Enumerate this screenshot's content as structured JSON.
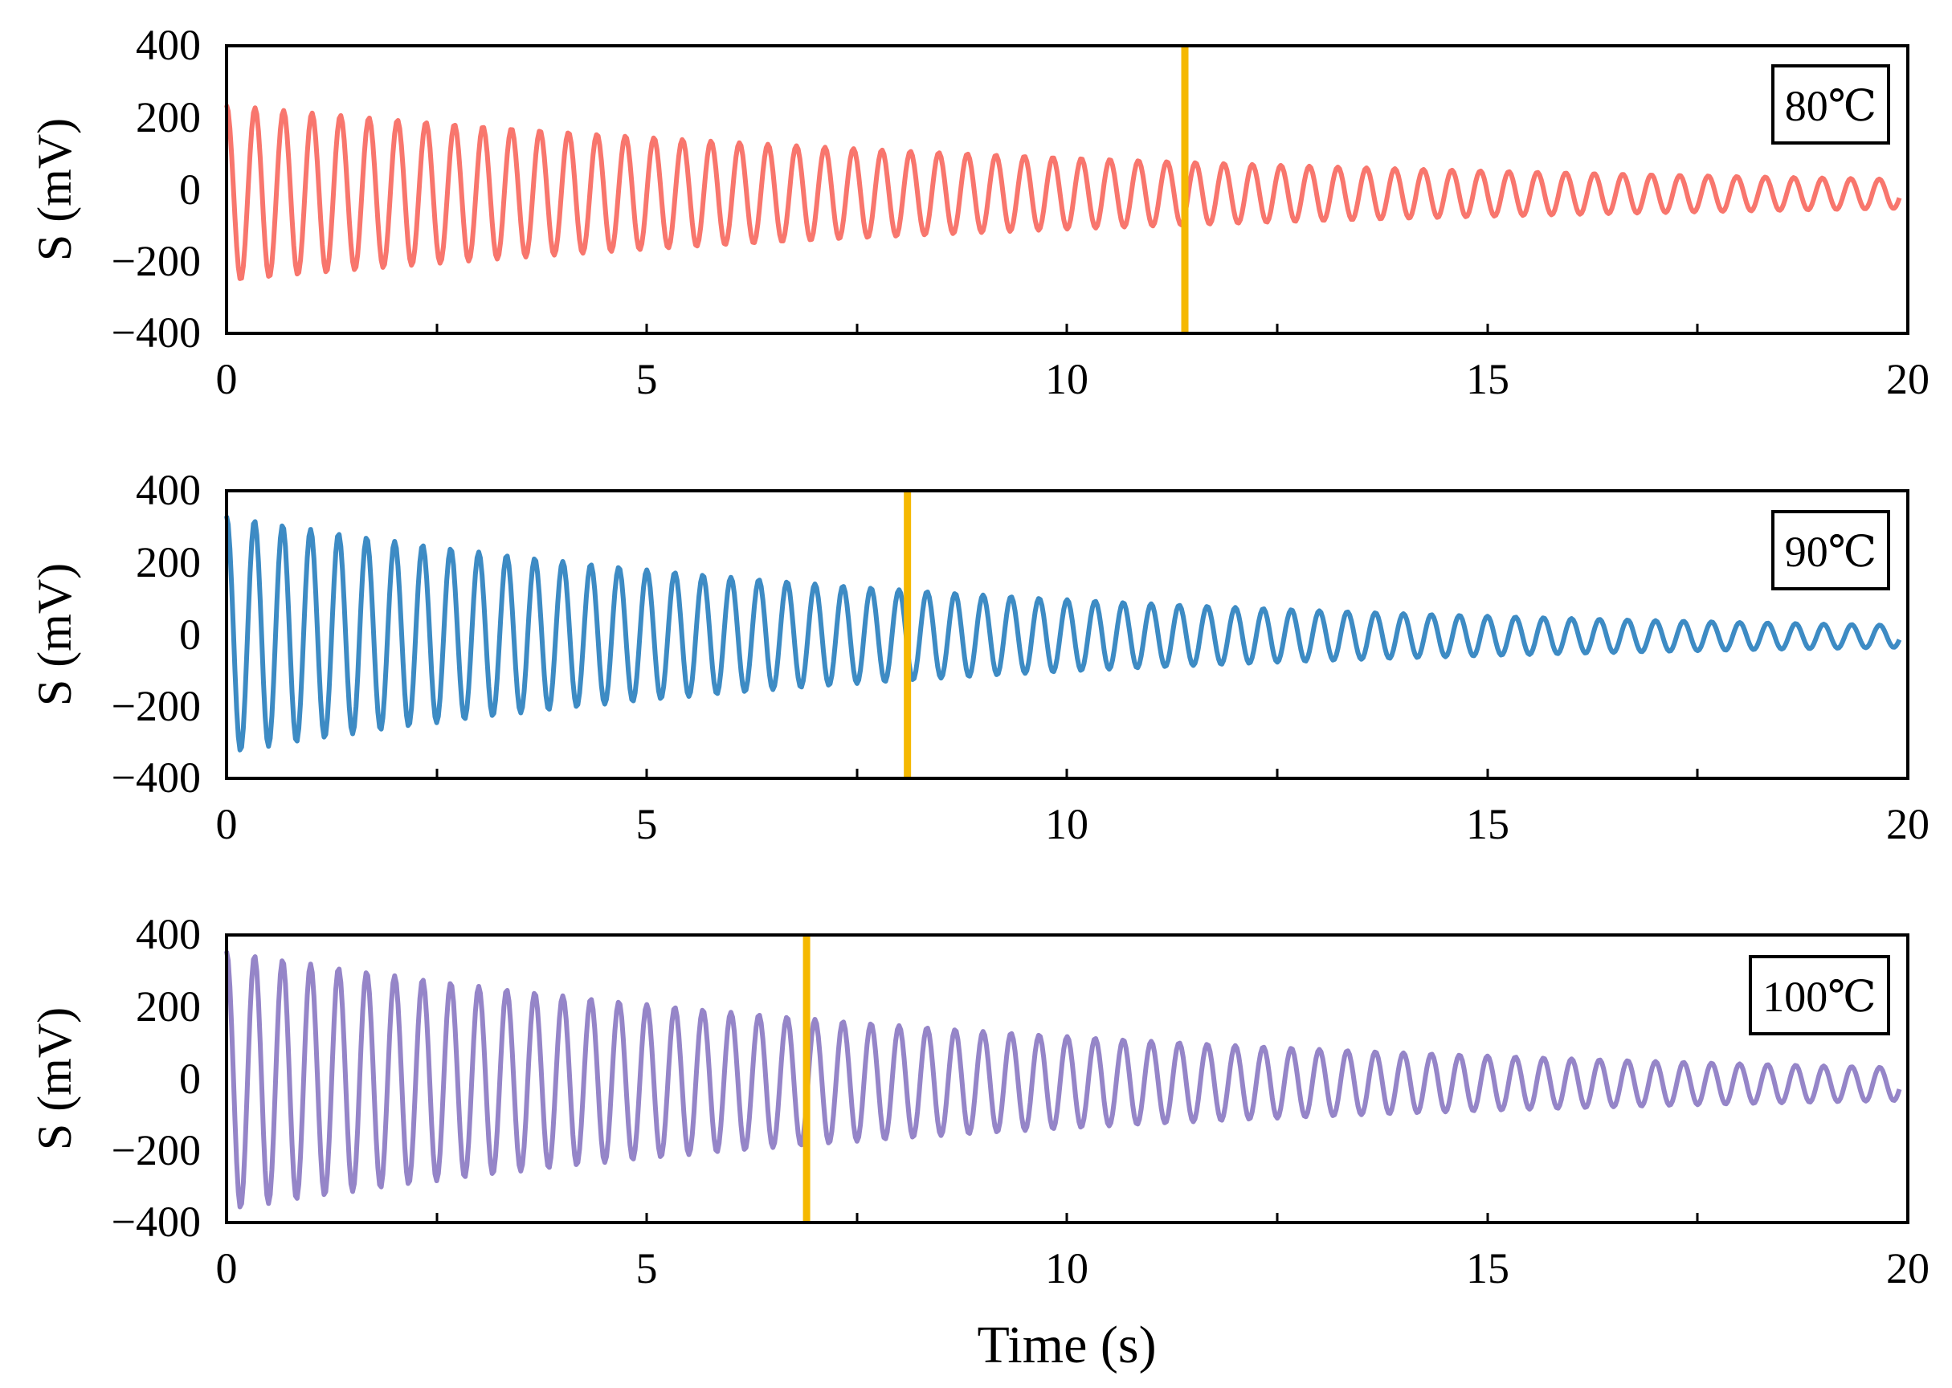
{
  "chart_data": [
    {
      "type": "line",
      "label": "80℃",
      "color": "#f8766d",
      "marker_time": 11.4,
      "xlim": [
        0,
        20
      ],
      "ylim": [
        -400,
        400
      ],
      "ylabel": "S (mV)",
      "x_ticks": [
        "0",
        "5",
        "10",
        "15",
        "20"
      ],
      "y_ticks": [
        "400",
        "200",
        "0",
        "−200",
        "−400"
      ],
      "signal": {
        "frequency_hz": 2.95,
        "amp_start": 245,
        "amp_end": 40,
        "offset_start": -10,
        "offset_end": -12,
        "sampling_s": 0.02
      }
    },
    {
      "type": "line",
      "label": "90℃",
      "color": "#3d8bc4",
      "marker_time": 8.1,
      "xlim": [
        0,
        20
      ],
      "ylim": [
        -400,
        400
      ],
      "ylabel": "S (mV)",
      "x_ticks": [
        "0",
        "5",
        "10",
        "15",
        "20"
      ],
      "y_ticks": [
        "400",
        "200",
        "0",
        "−200",
        "−400"
      ],
      "signal": {
        "frequency_hz": 3.0,
        "amp_start": 330,
        "amp_end": 30,
        "offset_start": 0,
        "offset_end": -5,
        "sampling_s": 0.02
      }
    },
    {
      "type": "line",
      "label": "100℃",
      "color": "#9585c8",
      "marker_time": 6.9,
      "xlim": [
        0,
        20
      ],
      "ylim": [
        -400,
        400
      ],
      "ylabel": "S (mV)",
      "xlabel": "Time (s)",
      "x_ticks": [
        "0",
        "5",
        "10",
        "15",
        "20"
      ],
      "y_ticks": [
        "400",
        "200",
        "0",
        "−200",
        "−400"
      ],
      "signal": {
        "frequency_hz": 3.0,
        "amp_start": 360,
        "amp_end": 45,
        "offset_start": -5,
        "offset_end": -15,
        "sampling_s": 0.02
      }
    }
  ],
  "marker_color": "#f5b800"
}
